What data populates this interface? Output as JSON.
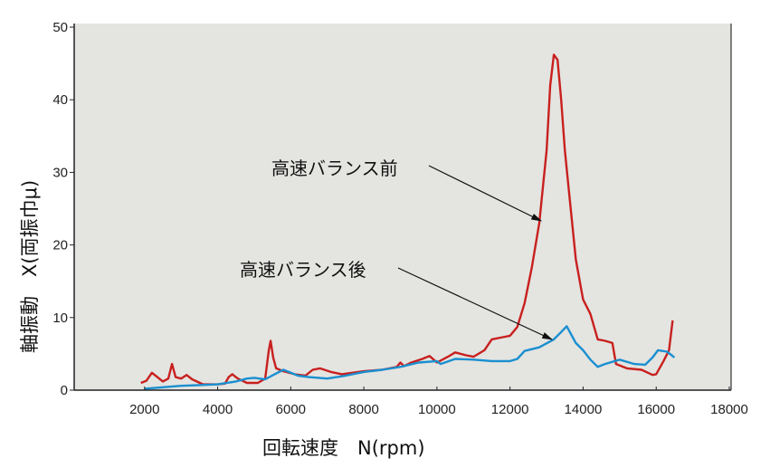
{
  "chart_data": {
    "type": "line",
    "title": "",
    "xlabel": "回転速度　N(rpm)",
    "ylabel": "軸振動　X(両振巾μ)",
    "xlim": [
      0,
      18000
    ],
    "ylim": [
      0,
      50
    ],
    "xticks": [
      2000,
      4000,
      6000,
      8000,
      10000,
      12000,
      14000,
      16000,
      18000
    ],
    "yticks": [
      0,
      10,
      20,
      30,
      40,
      50
    ],
    "grid": false,
    "background": "#e4e4e1",
    "series": [
      {
        "name": "高速バランス前",
        "color": "#c8201e",
        "x": [
          1900,
          2050,
          2200,
          2350,
          2500,
          2650,
          2750,
          2850,
          3000,
          3150,
          3300,
          3600,
          4000,
          4200,
          4300,
          4400,
          4550,
          4800,
          5100,
          5300,
          5400,
          5450,
          5520,
          5600,
          5800,
          6100,
          6400,
          6600,
          6800,
          7100,
          7400,
          8000,
          8500,
          8900,
          9000,
          9100,
          9300,
          9600,
          9800,
          10000,
          10300,
          10500,
          10800,
          11000,
          11300,
          11500,
          11800,
          12000,
          12200,
          12400,
          12600,
          12800,
          13000,
          13100,
          13200,
          13300,
          13400,
          13500,
          13600,
          13800,
          14000,
          14200,
          14400,
          14600,
          14800,
          14900,
          15200,
          15600,
          15900,
          16000,
          16200,
          16350,
          16450
        ],
        "y": [
          1.0,
          1.3,
          2.4,
          1.8,
          1.2,
          1.6,
          3.6,
          1.8,
          1.6,
          2.1,
          1.5,
          0.8,
          0.8,
          0.9,
          1.8,
          2.2,
          1.6,
          1.0,
          1.0,
          1.6,
          5.5,
          6.8,
          4.5,
          3.0,
          2.6,
          2.2,
          2.0,
          2.8,
          3.0,
          2.5,
          2.2,
          2.6,
          2.8,
          3.2,
          3.8,
          3.3,
          3.8,
          4.3,
          4.7,
          3.8,
          4.6,
          5.2,
          4.8,
          4.6,
          5.5,
          7.0,
          7.3,
          7.5,
          8.7,
          12.0,
          17.0,
          23.0,
          33.0,
          42.0,
          46.2,
          45.5,
          40.0,
          33.0,
          28.0,
          18.0,
          12.5,
          10.5,
          7.0,
          6.8,
          6.5,
          3.6,
          3.0,
          2.8,
          2.1,
          2.2,
          4.0,
          5.5,
          9.6
        ]
      },
      {
        "name": "高速バランス後",
        "color": "#1a8fd0",
        "x": [
          2000,
          2500,
          3000,
          3500,
          4000,
          4500,
          4800,
          5000,
          5300,
          5600,
          5800,
          6200,
          6500,
          7000,
          7500,
          8000,
          8500,
          9000,
          9500,
          10000,
          10100,
          10500,
          11000,
          11500,
          12000,
          12200,
          12400,
          12800,
          13200,
          13400,
          13550,
          13800,
          14000,
          14200,
          14400,
          14600,
          15000,
          15400,
          15700,
          15900,
          16050,
          16300,
          16500
        ],
        "y": [
          0.2,
          0.4,
          0.6,
          0.7,
          0.8,
          1.2,
          1.6,
          1.7,
          1.5,
          2.3,
          2.8,
          2.0,
          1.8,
          1.6,
          2.0,
          2.5,
          2.8,
          3.2,
          3.8,
          4.0,
          3.6,
          4.3,
          4.2,
          4.0,
          4.0,
          4.3,
          5.4,
          5.9,
          7.0,
          8.0,
          8.8,
          6.5,
          5.5,
          4.2,
          3.2,
          3.6,
          4.2,
          3.6,
          3.5,
          4.5,
          5.5,
          5.3,
          4.5
        ]
      }
    ],
    "annotations": [
      {
        "text": "高速バランス前",
        "target_series": 0
      },
      {
        "text": "高速バランス後",
        "target_series": 1
      }
    ]
  }
}
